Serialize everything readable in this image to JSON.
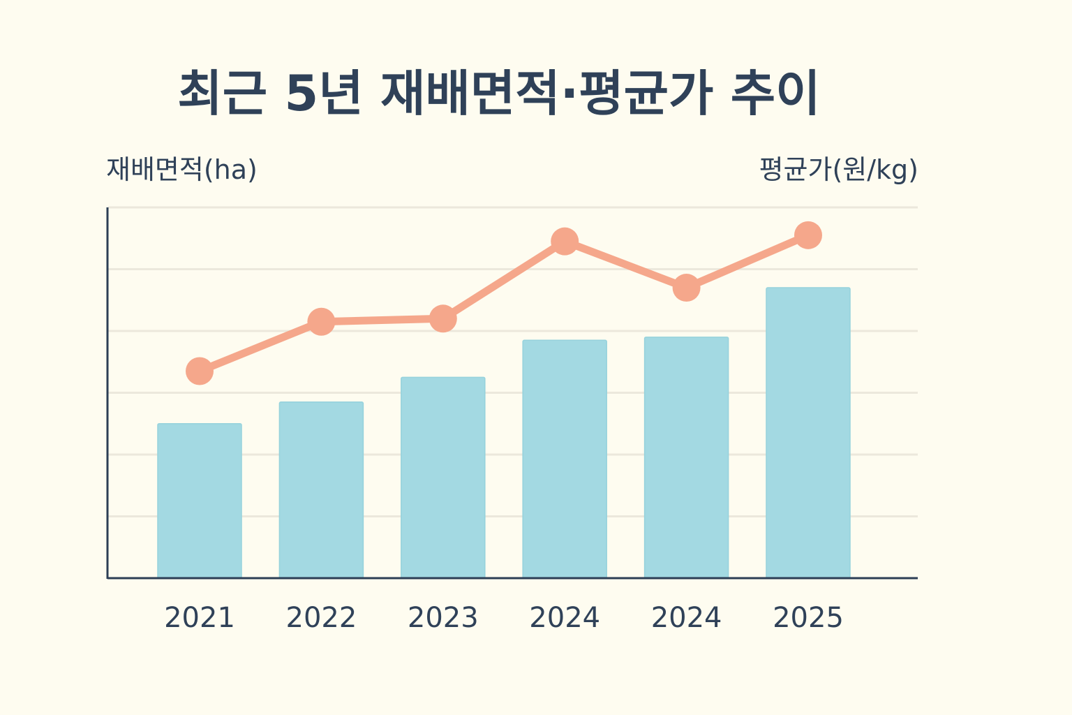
{
  "chart_data": {
    "type": "bar+line",
    "title": "최근 5년 재배면적·평균가 추이",
    "ylabel_left": "재배면적(ha)",
    "ylabel_right": "평균가(원/kg)",
    "categories": [
      "2021",
      "2022",
      "2023",
      "2024",
      "2024",
      "2025"
    ],
    "series": [
      {
        "type": "bar",
        "axis": "left",
        "values": [
          2.5,
          2.85,
          3.25,
          3.85,
          3.9,
          4.7
        ],
        "color": "#a3d9e2"
      },
      {
        "type": "line",
        "axis": "right",
        "values": [
          3.35,
          4.15,
          4.2,
          5.45,
          4.7,
          5.55
        ],
        "color": "#f5a78b"
      }
    ],
    "ylim": [
      0,
      6
    ],
    "y_ticks_labeled": false,
    "grid": true,
    "axis_color": "#2c3e55",
    "background": "#fefcf0"
  }
}
